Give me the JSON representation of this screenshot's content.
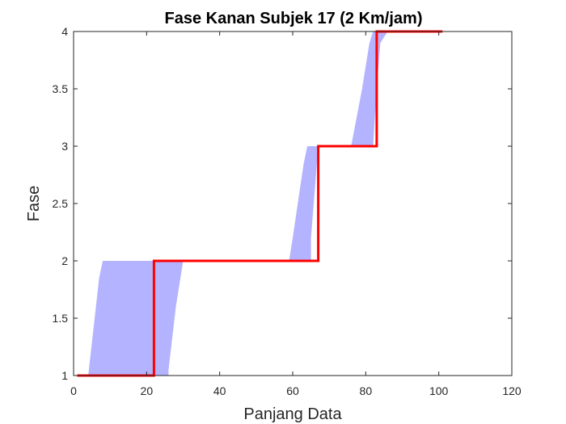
{
  "chart_data": {
    "type": "line",
    "title": "Fase Kanan Subjek 17 (2 Km/jam)",
    "xlabel": "Panjang Data",
    "ylabel": "Fase",
    "xlim": [
      0,
      120
    ],
    "ylim": [
      1,
      4
    ],
    "xticks": [
      0,
      20,
      40,
      60,
      80,
      100,
      120
    ],
    "xtick_labels": [
      "0",
      "20",
      "40",
      "60",
      "80",
      "100",
      "120"
    ],
    "yticks": [
      1,
      1.5,
      2,
      2.5,
      3,
      3.5,
      4
    ],
    "ytick_labels": [
      "1",
      "1.5",
      "2",
      "2.5",
      "3",
      "3.5",
      "4"
    ],
    "grid": false,
    "legend": "none",
    "colors": {
      "band": "#b3b3ff",
      "line": "#ff0000",
      "axis": "#262626"
    },
    "band": {
      "upper": [
        [
          1,
          1
        ],
        [
          4,
          1
        ],
        [
          7,
          1.85
        ],
        [
          8,
          2
        ],
        [
          59,
          2
        ],
        [
          60,
          2.2
        ],
        [
          63,
          2.85
        ],
        [
          64,
          3
        ],
        [
          76,
          3
        ],
        [
          79,
          3.5
        ],
        [
          81,
          3.9
        ],
        [
          82,
          4
        ],
        [
          86,
          4
        ]
      ],
      "lower": [
        [
          86,
          4
        ],
        [
          84,
          3.9
        ],
        [
          83,
          3.5
        ],
        [
          82,
          3
        ],
        [
          67,
          3
        ],
        [
          65,
          2.2
        ],
        [
          65,
          2
        ],
        [
          30,
          2
        ],
        [
          28,
          1.6
        ],
        [
          26,
          1.05
        ],
        [
          26,
          1
        ],
        [
          1,
          1
        ]
      ]
    },
    "series": [
      {
        "values": [
          [
            1,
            1
          ],
          [
            21,
            1
          ],
          [
            22,
            1
          ],
          [
            22,
            2
          ],
          [
            66,
            2
          ],
          [
            67,
            2
          ],
          [
            67,
            3
          ],
          [
            82,
            3
          ],
          [
            83,
            3
          ],
          [
            83,
            4
          ],
          [
            101,
            4
          ]
        ]
      }
    ]
  }
}
